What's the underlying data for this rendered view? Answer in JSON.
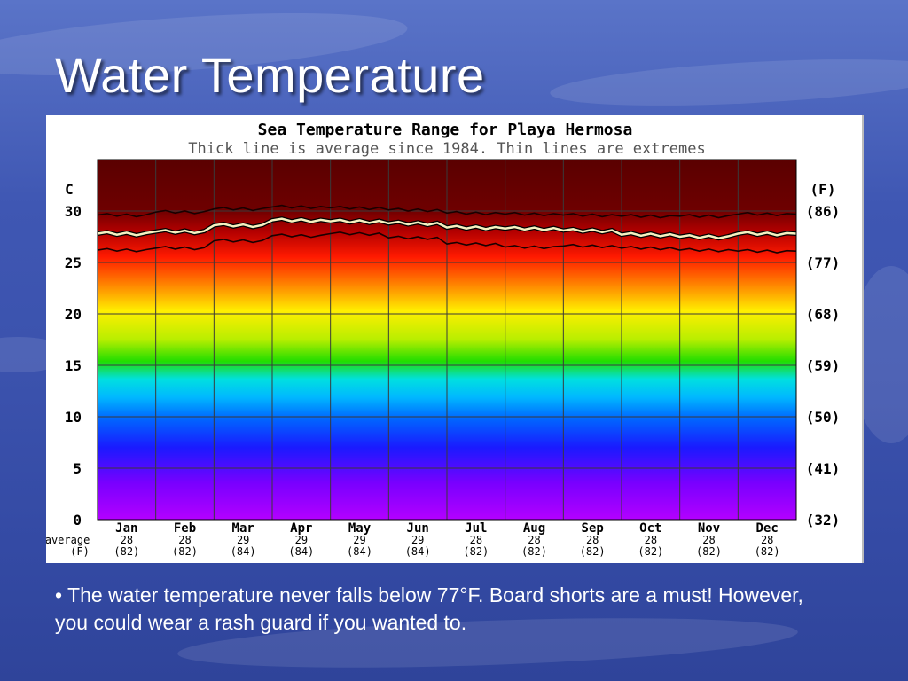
{
  "slide": {
    "title": "Water Temperature",
    "bullet": "• The water temperature never falls below 77°F. Board shorts are a must! However, you could wear a rash guard if you wanted to."
  },
  "chart_data": {
    "type": "line",
    "title": "Sea Temperature Range for Playa Hermosa",
    "subtitle": "Thick line is average since 1984. Thin lines are extremes",
    "y_left_unit": "C",
    "y_right_unit": "(F)",
    "ylim": [
      0,
      35
    ],
    "y_ticks_c": [
      0,
      5,
      10,
      15,
      20,
      25,
      30
    ],
    "y_ticks_f": [
      "(32)",
      "(41)",
      "(50)",
      "(59)",
      "(68)",
      "(77)",
      "(86)"
    ],
    "categories": [
      "Jan",
      "Feb",
      "Mar",
      "Apr",
      "May",
      "Jun",
      "Jul",
      "Aug",
      "Sep",
      "Oct",
      "Nov",
      "Dec"
    ],
    "average_label": "average",
    "average_unit_label": "(F)",
    "average_c": [
      "28",
      "28",
      "29",
      "29",
      "29",
      "29",
      "28",
      "28",
      "28",
      "28",
      "28",
      "28"
    ],
    "average_f": [
      "(82)",
      "(82)",
      "(84)",
      "(84)",
      "(84)",
      "(84)",
      "(82)",
      "(82)",
      "(82)",
      "(82)",
      "(82)",
      "(82)"
    ],
    "series": [
      {
        "role": "average",
        "values": [
          27.8,
          28.0,
          28.6,
          29.1,
          29.0,
          28.8,
          28.4,
          28.3,
          28.1,
          27.7,
          27.5,
          27.8
        ]
      },
      {
        "role": "max",
        "values": [
          29.6,
          29.9,
          30.2,
          30.4,
          30.3,
          30.1,
          29.8,
          29.7,
          29.6,
          29.5,
          29.5,
          29.7
        ]
      },
      {
        "role": "min",
        "values": [
          26.2,
          26.4,
          27.1,
          27.6,
          27.8,
          27.4,
          26.8,
          26.5,
          26.6,
          26.4,
          26.2,
          26.1
        ]
      }
    ],
    "grid": true,
    "colors": {
      "average": "#f5f0c0",
      "extremes": "#1a0000",
      "grid": "#3a3a3a",
      "frame": "#000000",
      "text": "#000000"
    }
  }
}
